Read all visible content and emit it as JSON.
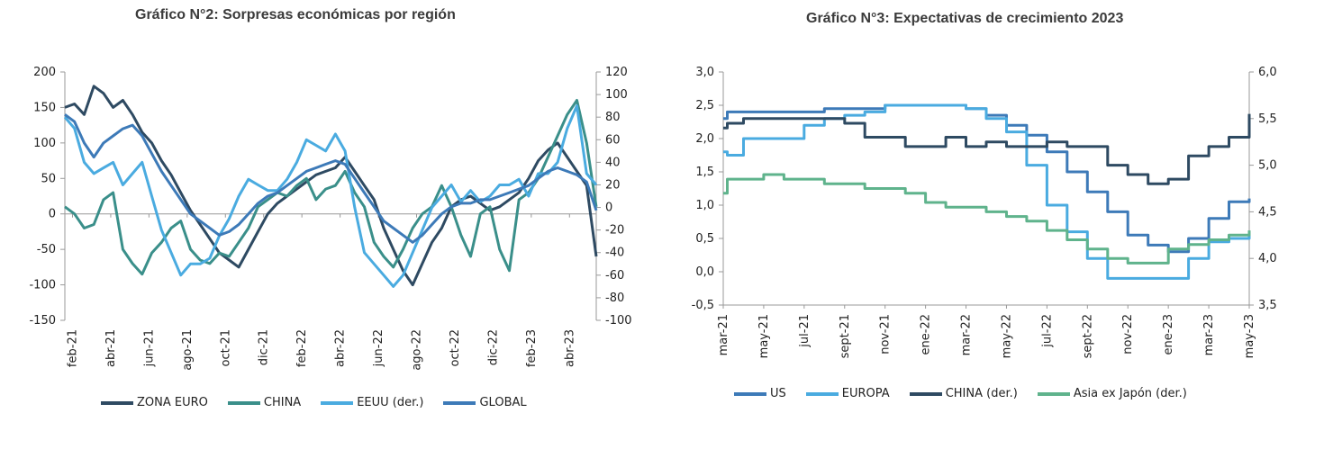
{
  "chart_data": [
    {
      "type": "line",
      "title": "Gráfico N°2: Sorpresas económicas por región",
      "yaxis_left": {
        "min": -150,
        "max": 200,
        "step": 50,
        "ticks": [
          "-150",
          "-100",
          "-50",
          "0",
          "50",
          "100",
          "150",
          "200"
        ]
      },
      "yaxis_right": {
        "min": -100,
        "max": 120,
        "step": 20,
        "ticks": [
          "-100",
          "-80",
          "-60",
          "-40",
          "-20",
          "0",
          "20",
          "40",
          "60",
          "80",
          "100",
          "120"
        ]
      },
      "x_ticks": [
        "feb-21",
        "abr-21",
        "jun-21",
        "ago-21",
        "oct-21",
        "dic-21",
        "feb-22",
        "abr-22",
        "jun-22",
        "ago-22",
        "oct-22",
        "dic-22",
        "feb-23",
        "abr-23"
      ],
      "x_range": [
        0,
        27.5
      ],
      "series": [
        {
          "name": "ZONA EURO",
          "axis": "left",
          "color": "#2e4a62",
          "x": [
            0,
            0.5,
            1,
            1.5,
            2,
            2.5,
            3,
            3.5,
            4,
            4.5,
            5,
            5.5,
            6,
            6.5,
            7,
            7.5,
            8,
            8.5,
            9,
            9.5,
            10,
            10.5,
            11,
            11.5,
            12,
            12.5,
            13,
            13.5,
            14,
            14.5,
            15,
            15.5,
            16,
            16.5,
            17,
            17.5,
            18,
            18.5,
            19,
            19.5,
            20,
            20.5,
            21,
            21.5,
            22,
            22.5,
            23,
            23.5,
            24,
            24.5,
            25,
            25.5,
            26,
            26.5,
            27,
            27.5
          ],
          "y": [
            150,
            155,
            140,
            180,
            170,
            150,
            160,
            140,
            115,
            100,
            75,
            55,
            30,
            5,
            -15,
            -35,
            -55,
            -65,
            -75,
            -50,
            -25,
            0,
            15,
            25,
            35,
            45,
            55,
            60,
            65,
            80,
            60,
            40,
            20,
            -20,
            -50,
            -80,
            -100,
            -70,
            -40,
            -20,
            10,
            20,
            25,
            15,
            5,
            10,
            20,
            30,
            50,
            75,
            90,
            100,
            80,
            60,
            40,
            -60
          ]
        },
        {
          "name": "CHINA",
          "axis": "left",
          "color": "#3a8f8a",
          "x": [
            0,
            0.5,
            1,
            1.5,
            2,
            2.5,
            3,
            3.5,
            4,
            4.5,
            5,
            5.5,
            6,
            6.5,
            7,
            7.5,
            8,
            8.5,
            9,
            9.5,
            10,
            10.5,
            11,
            11.5,
            12,
            12.5,
            13,
            13.5,
            14,
            14.5,
            15,
            15.5,
            16,
            16.5,
            17,
            17.5,
            18,
            18.5,
            19,
            19.5,
            20,
            20.5,
            21,
            21.5,
            22,
            22.5,
            23,
            23.5,
            24,
            24.5,
            25,
            25.5,
            26,
            26.5,
            27,
            27.5
          ],
          "y": [
            10,
            0,
            -20,
            -15,
            20,
            30,
            -50,
            -70,
            -85,
            -55,
            -40,
            -20,
            -10,
            -50,
            -65,
            -70,
            -55,
            -60,
            -40,
            -20,
            10,
            20,
            30,
            25,
            40,
            50,
            20,
            35,
            40,
            60,
            30,
            10,
            -40,
            -60,
            -75,
            -50,
            -20,
            0,
            10,
            40,
            10,
            -30,
            -60,
            0,
            10,
            -50,
            -80,
            20,
            30,
            50,
            80,
            110,
            140,
            160,
            100,
            10
          ]
        },
        {
          "name": "EEUU (der.)",
          "axis": "right",
          "color": "#4aabe0",
          "x": [
            0,
            0.5,
            1,
            1.5,
            2,
            2.5,
            3,
            3.5,
            4,
            4.5,
            5,
            5.5,
            6,
            6.5,
            7,
            7.5,
            8,
            8.5,
            9,
            9.5,
            10,
            10.5,
            11,
            11.5,
            12,
            12.5,
            13,
            13.5,
            14,
            14.5,
            15,
            15.5,
            16,
            16.5,
            17,
            17.5,
            18,
            18.5,
            19,
            19.5,
            20,
            20.5,
            21,
            21.5,
            22,
            22.5,
            23,
            23.5,
            24,
            24.5,
            25,
            25.5,
            26,
            26.5,
            27,
            27.5
          ],
          "y": [
            80,
            70,
            40,
            30,
            35,
            40,
            20,
            30,
            40,
            10,
            -20,
            -40,
            -60,
            -50,
            -50,
            -45,
            -25,
            -10,
            10,
            25,
            20,
            15,
            15,
            25,
            40,
            60,
            55,
            50,
            65,
            50,
            0,
            -40,
            -50,
            -60,
            -70,
            -60,
            -40,
            -20,
            0,
            10,
            20,
            5,
            15,
            5,
            10,
            20,
            20,
            25,
            10,
            30,
            30,
            40,
            70,
            90,
            30,
            20
          ]
        },
        {
          "name": "GLOBAL",
          "axis": "left",
          "color": "#3d7ab8",
          "x": [
            0,
            0.5,
            1,
            1.5,
            2,
            2.5,
            3,
            3.5,
            4,
            4.5,
            5,
            5.5,
            6,
            6.5,
            7,
            7.5,
            8,
            8.5,
            9,
            9.5,
            10,
            10.5,
            11,
            11.5,
            12,
            12.5,
            13,
            13.5,
            14,
            14.5,
            15,
            15.5,
            16,
            16.5,
            17,
            17.5,
            18,
            18.5,
            19,
            19.5,
            20,
            20.5,
            21,
            21.5,
            22,
            22.5,
            23,
            23.5,
            24,
            24.5,
            25,
            25.5,
            26,
            26.5,
            27,
            27.5
          ],
          "y": [
            140,
            130,
            100,
            80,
            100,
            110,
            120,
            125,
            110,
            85,
            60,
            40,
            20,
            0,
            -10,
            -20,
            -30,
            -25,
            -15,
            0,
            15,
            25,
            30,
            40,
            50,
            60,
            65,
            70,
            75,
            70,
            50,
            30,
            10,
            -10,
            -20,
            -30,
            -40,
            -30,
            -15,
            0,
            10,
            15,
            15,
            20,
            20,
            25,
            30,
            35,
            40,
            50,
            60,
            65,
            60,
            55,
            45,
            5
          ]
        }
      ]
    },
    {
      "type": "line",
      "title": "Gráfico N°3: Expectativas de crecimiento 2023",
      "yaxis_left": {
        "min": -0.5,
        "max": 3.0,
        "step": 0.5,
        "ticks": [
          "-0,5",
          "0,0",
          "0,5",
          "1,0",
          "1,5",
          "2,0",
          "2,5",
          "3,0"
        ]
      },
      "yaxis_right": {
        "min": 3.5,
        "max": 6.0,
        "step": 0.5,
        "ticks": [
          "3,5",
          "4,0",
          "4,5",
          "5,0",
          "5,5",
          "6,0"
        ]
      },
      "x_ticks": [
        "mar-21",
        "may-21",
        "jul-21",
        "sept-21",
        "nov-21",
        "ene-22",
        "mar-22",
        "may-22",
        "jul-22",
        "sept-22",
        "nov-22",
        "ene-23",
        "mar-23",
        "may-23"
      ],
      "x_range": [
        0,
        26
      ],
      "series": [
        {
          "name": "US",
          "axis": "left",
          "color": "#3d7ab8",
          "x": [
            0,
            0.2,
            1,
            2,
            3,
            4,
            5,
            6,
            7,
            8,
            9,
            10,
            11,
            12,
            13,
            14,
            15,
            16,
            17,
            18,
            19,
            20,
            21,
            22,
            23,
            24,
            25,
            26
          ],
          "y": [
            2.3,
            2.4,
            2.4,
            2.4,
            2.4,
            2.4,
            2.45,
            2.45,
            2.45,
            2.5,
            2.5,
            2.5,
            2.5,
            2.45,
            2.35,
            2.2,
            2.05,
            1.8,
            1.5,
            1.2,
            0.9,
            0.55,
            0.4,
            0.3,
            0.5,
            0.8,
            1.05,
            1.1
          ]
        },
        {
          "name": "EUROPA",
          "axis": "left",
          "color": "#4aabe0",
          "x": [
            0,
            0.2,
            1,
            2,
            3,
            4,
            5,
            6,
            7,
            8,
            9,
            10,
            11,
            12,
            13,
            14,
            15,
            16,
            17,
            18,
            19,
            20,
            21,
            22,
            23,
            24,
            25,
            26
          ],
          "y": [
            1.8,
            1.75,
            2.0,
            2.0,
            2.0,
            2.2,
            2.3,
            2.35,
            2.4,
            2.5,
            2.5,
            2.5,
            2.5,
            2.45,
            2.3,
            2.1,
            1.6,
            1.0,
            0.6,
            0.2,
            -0.1,
            -0.1,
            -0.1,
            -0.1,
            0.2,
            0.45,
            0.5,
            0.6
          ]
        },
        {
          "name": "CHINA (der.)",
          "axis": "right",
          "color": "#2e4a62",
          "x": [
            0,
            0.2,
            1,
            2,
            3,
            4,
            5,
            6,
            7,
            8,
            9,
            10,
            11,
            12,
            13,
            14,
            15,
            16,
            17,
            18,
            19,
            20,
            21,
            22,
            23,
            24,
            25,
            26
          ],
          "y": [
            5.4,
            5.45,
            5.5,
            5.5,
            5.5,
            5.5,
            5.5,
            5.45,
            5.3,
            5.3,
            5.2,
            5.2,
            5.3,
            5.2,
            5.25,
            5.2,
            5.2,
            5.25,
            5.2,
            5.2,
            5.0,
            4.9,
            4.8,
            4.85,
            5.1,
            5.2,
            5.3,
            5.55
          ]
        },
        {
          "name": "Asia ex Japón (der.)",
          "axis": "right",
          "color": "#5fb38c",
          "x": [
            0,
            0.2,
            1,
            2,
            3,
            4,
            5,
            6,
            7,
            8,
            9,
            10,
            11,
            12,
            13,
            14,
            15,
            16,
            17,
            18,
            19,
            20,
            21,
            22,
            23,
            24,
            25,
            26
          ],
          "y": [
            4.7,
            4.85,
            4.85,
            4.9,
            4.85,
            4.85,
            4.8,
            4.8,
            4.75,
            4.75,
            4.7,
            4.6,
            4.55,
            4.55,
            4.5,
            4.45,
            4.4,
            4.3,
            4.2,
            4.1,
            4.0,
            3.95,
            3.95,
            4.1,
            4.15,
            4.2,
            4.25,
            4.3
          ]
        }
      ]
    }
  ]
}
